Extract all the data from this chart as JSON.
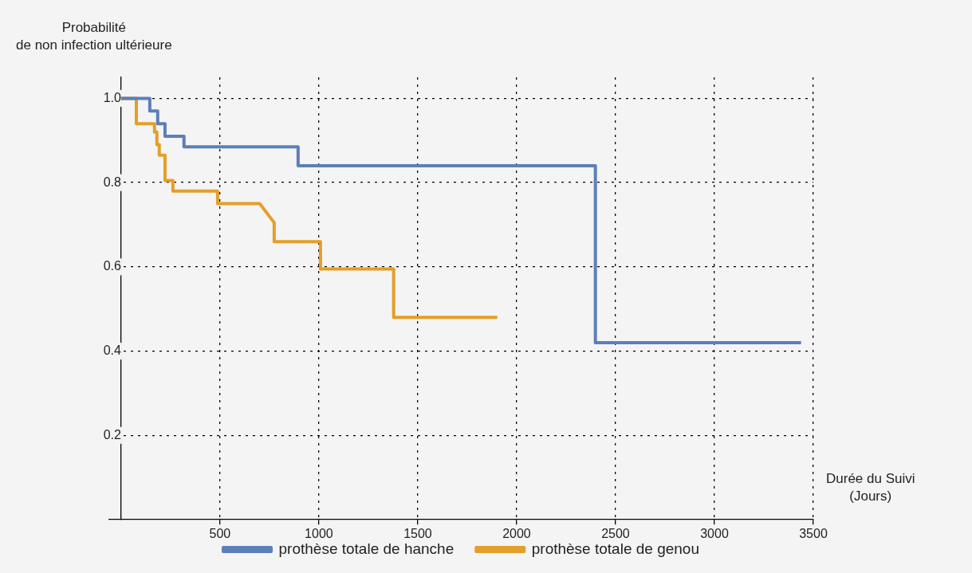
{
  "chart_data": {
    "type": "line",
    "xlabel": "Durée du Suivi\n(Jours)",
    "ylabel": "Probabilité\nde non infection ultérieure",
    "xlim": [
      -60,
      3500
    ],
    "xticks": [
      500,
      1000,
      1500,
      2000,
      2500,
      3000,
      3500
    ],
    "ylim": [
      0,
      1.05
    ],
    "yticks": [
      0.2,
      0.4,
      0.6,
      0.8,
      {
        "value": 1,
        "label": "1.0"
      }
    ],
    "grid": true,
    "legend": "bottom",
    "series": [
      {
        "name": "prothèse totale de hanche",
        "color": "#5b7fb9",
        "x": [
          0,
          145,
          145,
          185,
          185,
          222,
          222,
          318,
          318,
          895,
          895,
          2398,
          2398,
          3438
        ],
        "values": [
          1,
          1,
          0.97,
          0.97,
          0.94,
          0.94,
          0.91,
          0.91,
          0.885,
          0.885,
          0.84,
          0.84,
          0.42,
          0.42
        ]
      },
      {
        "name": "prothèse totale de genou",
        "color": "#e39f2a",
        "x": [
          0,
          77,
          77,
          169,
          169,
          181,
          181,
          193,
          193,
          222,
          222,
          262,
          262,
          488,
          488,
          701,
          774,
          774,
          1008,
          1008,
          1378,
          1378,
          1902
        ],
        "values": [
          1,
          1,
          0.94,
          0.94,
          0.92,
          0.92,
          0.89,
          0.89,
          0.865,
          0.865,
          0.805,
          0.805,
          0.78,
          0.78,
          0.75,
          0.75,
          0.705,
          0.66,
          0.66,
          0.595,
          0.595,
          0.48,
          0.48
        ]
      }
    ]
  }
}
